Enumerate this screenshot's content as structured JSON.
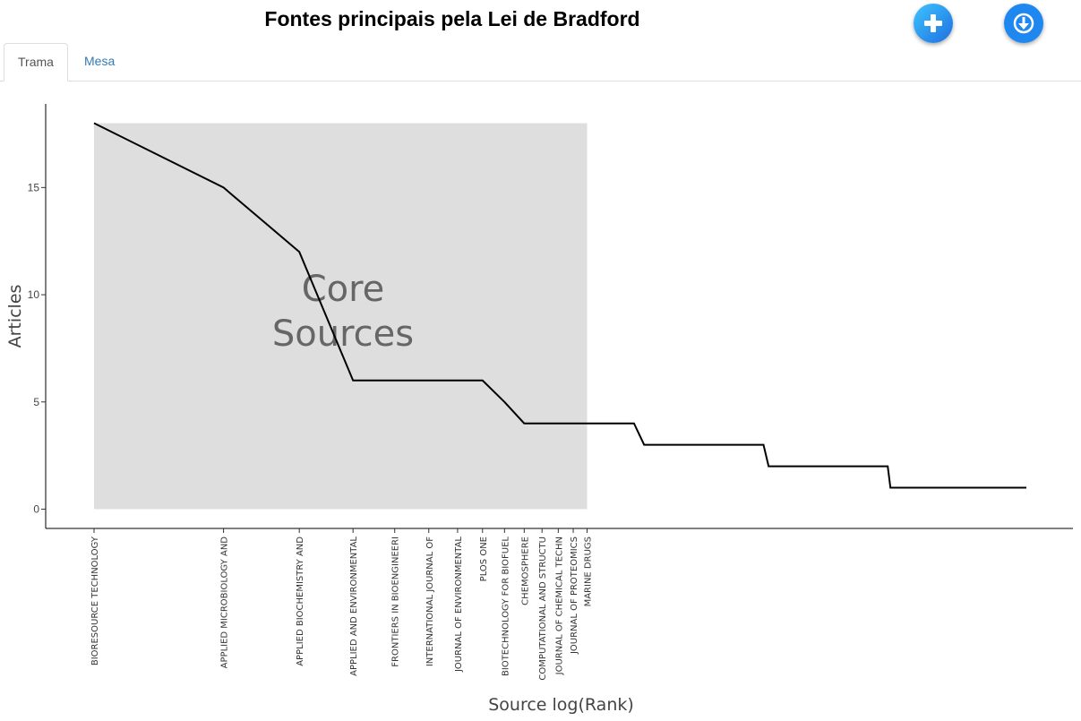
{
  "page": {
    "title": "Fontes principais pela Lei de Bradford"
  },
  "toolbar": {
    "add_icon": "plus-icon",
    "download_icon": "download-icon",
    "accent_color": "#1e88f0"
  },
  "tabs": [
    {
      "label": "Trama",
      "active": true
    },
    {
      "label": "Mesa",
      "active": false
    }
  ],
  "chart_data": {
    "type": "line",
    "xlabel": "Source log(Rank)",
    "ylabel": "Articles",
    "ylim": [
      -0.9,
      18.9
    ],
    "yticks": [
      0,
      5,
      10,
      15
    ],
    "x_scale": "log",
    "grid": false,
    "line_color": "#000000",
    "core_zone": {
      "label_lines": [
        "Core",
        "Sources"
      ],
      "rank_range": [
        1,
        14
      ],
      "articles_range": [
        0,
        18
      ],
      "color": "#dedede"
    },
    "sources": [
      {
        "rank": 1,
        "label": "BIORESOURCE TECHNOLOGY",
        "articles": 18
      },
      {
        "rank": 2,
        "label": "APPLIED MICROBIOLOGY AND",
        "articles": 15
      },
      {
        "rank": 3,
        "label": "APPLIED BIOCHEMISTRY AND",
        "articles": 12
      },
      {
        "rank": 4,
        "label": "APPLIED AND ENVIRONMENTAL",
        "articles": 6
      },
      {
        "rank": 5,
        "label": "FRONTIERS IN BIOENGINEERI",
        "articles": 6
      },
      {
        "rank": 6,
        "label": "INTERNATIONAL JOURNAL OF",
        "articles": 6
      },
      {
        "rank": 7,
        "label": "JOURNAL OF ENVIRONMENTAL",
        "articles": 6
      },
      {
        "rank": 8,
        "label": "PLOS ONE",
        "articles": 6
      },
      {
        "rank": 9,
        "label": "BIOTECHNOLOGY FOR BIOFUEL",
        "articles": 5
      },
      {
        "rank": 10,
        "label": "CHEMOSPHERE",
        "articles": 4
      },
      {
        "rank": 11,
        "label": "COMPUTATIONAL AND STRUCTU",
        "articles": 4
      },
      {
        "rank": 12,
        "label": "JOURNAL OF CHEMICAL TECHN",
        "articles": 4
      },
      {
        "rank": 13,
        "label": "JOURNAL OF PROTEOMICS",
        "articles": 4
      },
      {
        "rank": 14,
        "label": "MARINE DRUGS",
        "articles": 4
      }
    ],
    "tail": [
      {
        "rank": 18,
        "articles": 4
      },
      {
        "rank": 19,
        "articles": 3
      },
      {
        "rank": 36,
        "articles": 3
      },
      {
        "rank": 37,
        "articles": 2
      },
      {
        "rank": 70,
        "articles": 2
      },
      {
        "rank": 71,
        "articles": 1
      },
      {
        "rank": 147,
        "articles": 1
      }
    ]
  }
}
